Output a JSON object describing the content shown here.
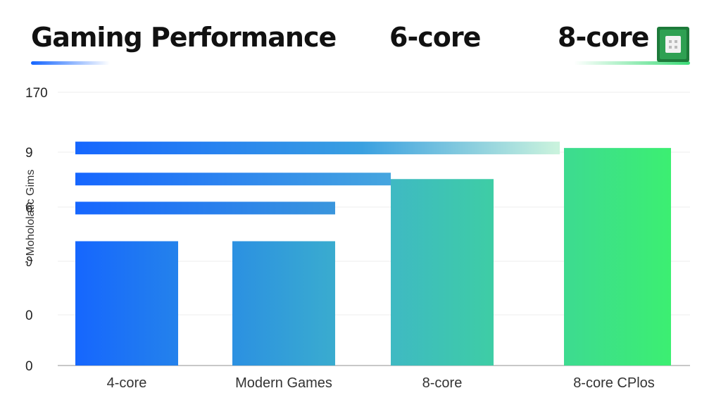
{
  "header": {
    "title": "Gaming Performance",
    "title_b": "6-core",
    "title_c": "8-core"
  },
  "icons": {
    "chip": "cpu-chip-icon"
  },
  "colors": {
    "blue": "#1565ff",
    "teal": "#3fb6c8",
    "green": "#3cf070"
  },
  "chart_data": {
    "type": "bar",
    "title": "Gaming Performance",
    "ylabel": "Mohololatic Gims",
    "xlabel": "",
    "y_tick_labels": [
      "0",
      "0",
      "ϑ",
      "6",
      "9",
      "170"
    ],
    "categories": [
      "4-core",
      "Modern Games",
      "8-core",
      "8-core CPlos"
    ],
    "bars": [
      {
        "category": "4-core",
        "value": 6
      },
      {
        "category": "Modern Games",
        "value": 6
      },
      {
        "category": "8-core",
        "value": 9
      },
      {
        "category": "8-core CPlos",
        "value": 10.5
      }
    ],
    "horizontal_bars": [
      {
        "start_category": "4-core",
        "end_category": "8-core CPlos",
        "value": 10.5
      },
      {
        "start_category": "4-core",
        "end_category": "8-core",
        "value": 9
      },
      {
        "start_category": "4-core",
        "end_category": "Modern Games",
        "value": 7.6
      }
    ],
    "ylim": [
      0,
      12
    ],
    "grid": true
  }
}
